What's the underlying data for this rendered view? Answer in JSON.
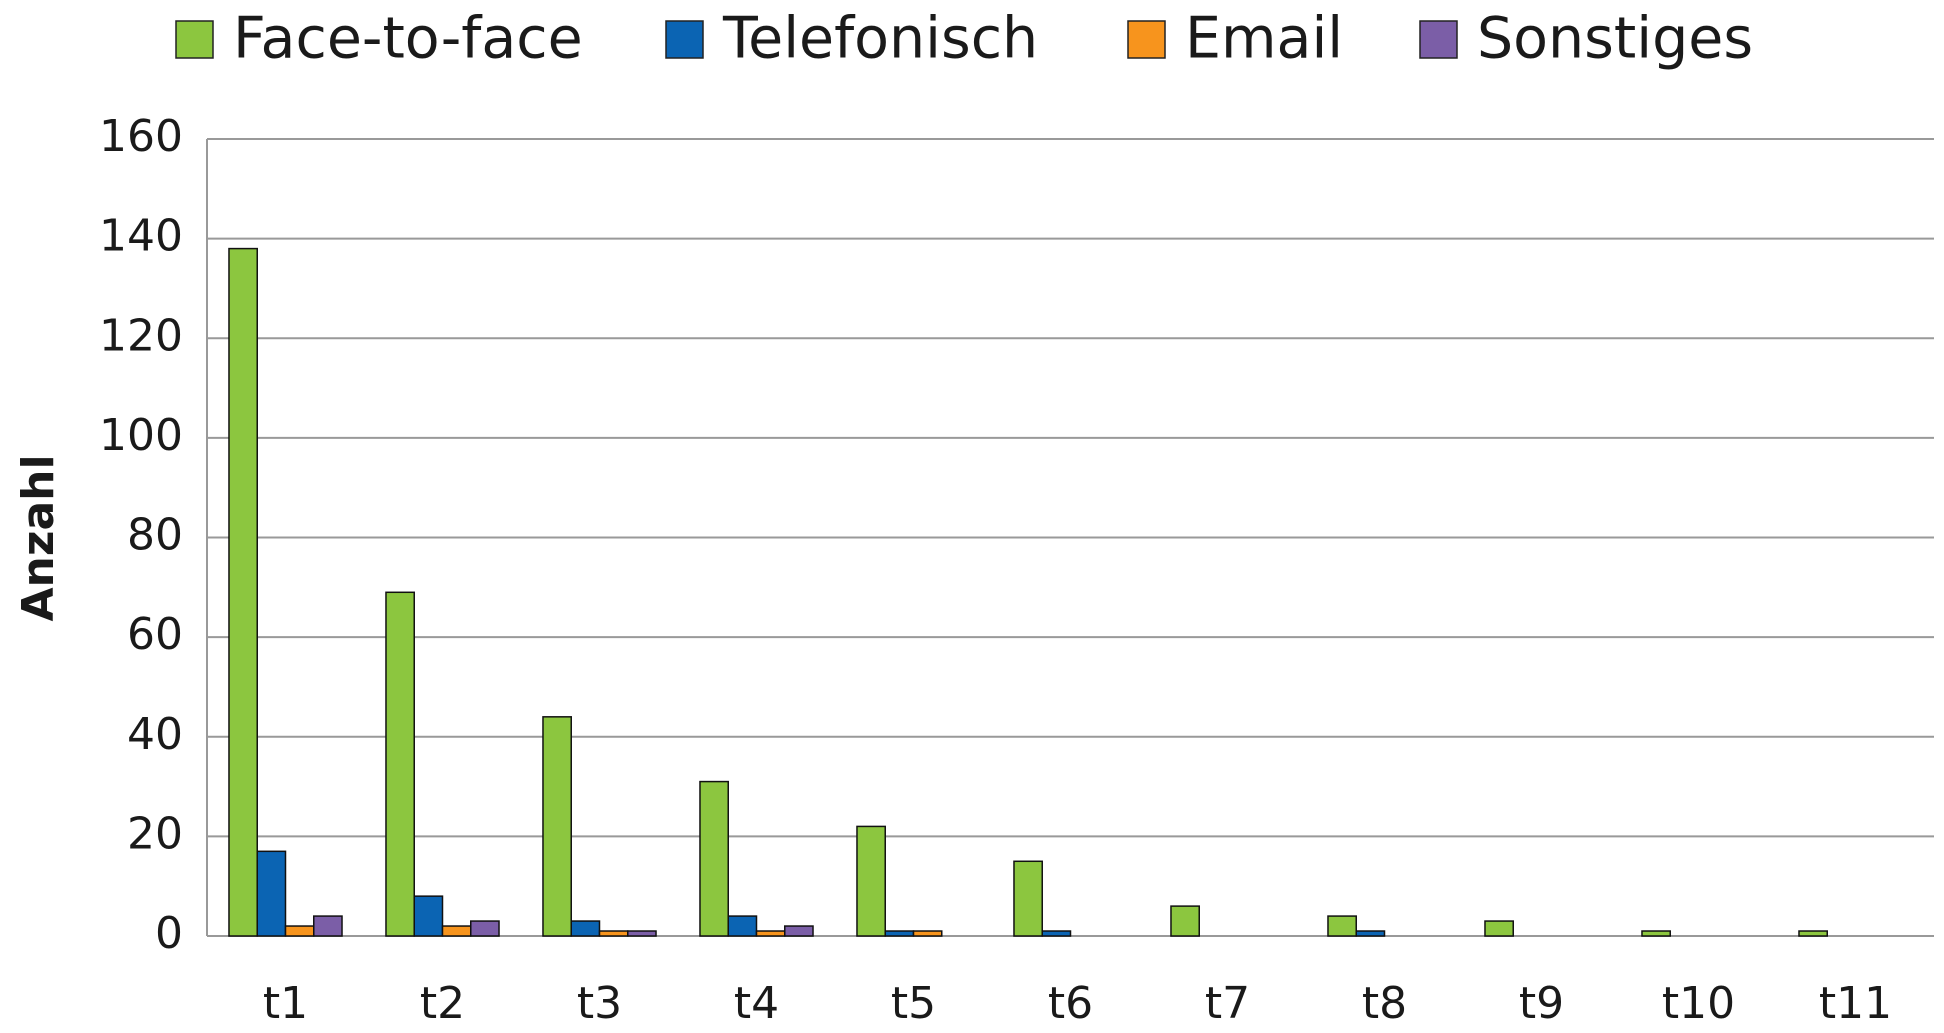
{
  "chart_data": {
    "type": "bar",
    "y_label": "Anzahl",
    "categories": [
      "t1",
      "t2",
      "t3",
      "t4",
      "t5",
      "t6",
      "t7",
      "t8",
      "t9",
      "t10",
      "t11"
    ],
    "series": [
      {
        "name": "Face-to-face",
        "color": "#8cc63f",
        "values": [
          138,
          69,
          44,
          31,
          22,
          15,
          6,
          4,
          3,
          1,
          1
        ]
      },
      {
        "name": "Telefonisch",
        "color": "#0b64b3",
        "values": [
          17,
          8,
          3,
          4,
          1,
          1,
          0,
          1,
          0,
          0,
          0
        ]
      },
      {
        "name": "Email",
        "color": "#f7941d",
        "values": [
          2,
          2,
          1,
          1,
          1,
          0,
          0,
          0,
          0,
          0,
          0
        ]
      },
      {
        "name": "Sonstiges",
        "color": "#7b5ea7",
        "values": [
          4,
          3,
          1,
          2,
          0,
          0,
          0,
          0,
          0,
          0,
          0
        ]
      }
    ],
    "ylim": [
      0,
      160
    ],
    "yticks": [
      0,
      20,
      40,
      60,
      80,
      100,
      120,
      140,
      160
    ],
    "grid": true,
    "legend": "top"
  }
}
